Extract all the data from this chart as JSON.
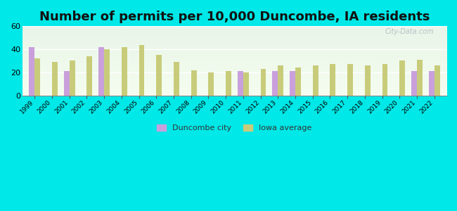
{
  "title": "Number of permits per 10,000 Duncombe, IA residents",
  "years": [
    1999,
    2000,
    2001,
    2002,
    2003,
    2004,
    2005,
    2006,
    2007,
    2008,
    2009,
    2010,
    2011,
    2012,
    2013,
    2014,
    2015,
    2016,
    2017,
    2018,
    2019,
    2020,
    2021,
    2022
  ],
  "duncombe": [
    42,
    null,
    21,
    null,
    42,
    null,
    null,
    null,
    null,
    null,
    null,
    null,
    21,
    null,
    21,
    21,
    null,
    null,
    null,
    null,
    null,
    null,
    21,
    21
  ],
  "iowa_avg": [
    32,
    29,
    30,
    34,
    40,
    42,
    44,
    35,
    29,
    22,
    20,
    21,
    20,
    23,
    26,
    24,
    26,
    27,
    27,
    26,
    27,
    30,
    31,
    26
  ],
  "duncombe_color": "#c9a0dc",
  "iowa_color": "#c8cc7a",
  "background_outer": "#00e8e8",
  "ylim": [
    0,
    60
  ],
  "yticks": [
    0,
    20,
    40,
    60
  ],
  "title_fontsize": 13,
  "bar_width": 0.32,
  "legend_duncombe": "Duncombe city",
  "legend_iowa": "Iowa average"
}
